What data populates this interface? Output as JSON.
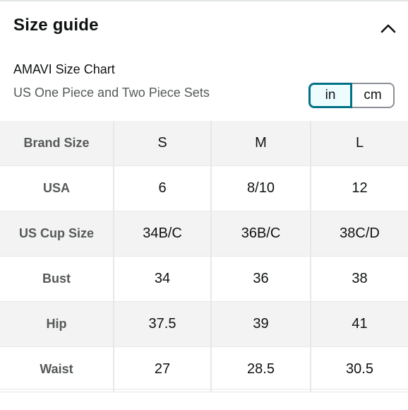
{
  "header": {
    "title": "Size guide",
    "collapse_icon": "chevron-up-icon"
  },
  "chart": {
    "name": "AMAVI Size Chart",
    "subtitle": "US One Piece and Two Piece Sets"
  },
  "unit_toggle": {
    "options": [
      "in",
      "cm"
    ],
    "selected": "in",
    "accent_color": "#007185"
  },
  "table": {
    "columns": [
      "Brand Size",
      "S",
      "M",
      "L"
    ],
    "rows": [
      {
        "label": "USA",
        "values": [
          "6",
          "8/10",
          "12"
        ]
      },
      {
        "label": "US Cup Size",
        "values": [
          "34B/C",
          "36B/C",
          "38C/D"
        ]
      },
      {
        "label": "Bust",
        "values": [
          "34",
          "36",
          "38"
        ]
      },
      {
        "label": "Hip",
        "values": [
          "37.5",
          "39",
          "41"
        ]
      },
      {
        "label": "Waist",
        "values": [
          "27",
          "28.5",
          "30.5"
        ]
      }
    ]
  }
}
